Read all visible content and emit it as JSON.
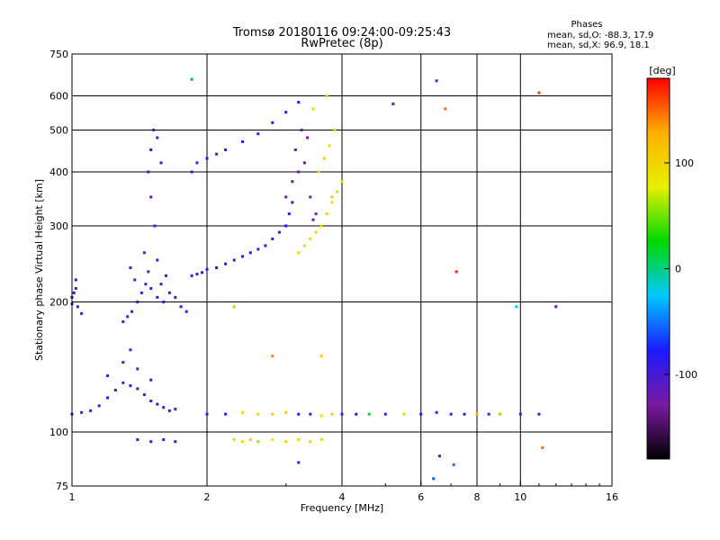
{
  "header": {
    "title_line1": "Tromsø 20180116 09:24:00-09:25:43",
    "title_line2": "RwPretec (8p)"
  },
  "phase_box": {
    "title": "Phases",
    "line_o": "mean, sd,O: -88.3, 17.9",
    "line_x": "mean, sd,X:  96.9, 18.1"
  },
  "colorbar": {
    "label": "[deg]",
    "ticks": [
      {
        "label": "100",
        "value": 100
      },
      {
        "label": "0",
        "value": 0
      },
      {
        "label": "-100",
        "value": -100
      }
    ],
    "range": [
      -180,
      180
    ],
    "colors": [
      "#000000",
      "#7a1aa0",
      "#1a1aff",
      "#00c8ff",
      "#00d900",
      "#e6f000",
      "#ffb000",
      "#ff0000"
    ]
  },
  "chart_data": {
    "type": "scatter",
    "title": "Tromsø 20180116 09:24:00-09:25:43",
    "subtitle": "RwPretec (8p)",
    "xlabel": "Frequency [MHz]",
    "ylabel": "Stationary phase Virtual Height [km]",
    "x_scale": "log",
    "y_scale": "log",
    "xlim": [
      1,
      16
    ],
    "ylim": [
      75,
      750
    ],
    "x_ticks": [
      {
        "label": "1",
        "value": 1
      },
      {
        "label": "2",
        "value": 2
      },
      {
        "label": "4",
        "value": 4
      },
      {
        "label": "6",
        "value": 6
      },
      {
        "label": "8",
        "value": 8
      },
      {
        "label": "10",
        "value": 10
      },
      {
        "label": "16",
        "value": 16
      }
    ],
    "y_ticks": [
      {
        "label": "75",
        "value": 75
      },
      {
        "label": "100",
        "value": 100
      },
      {
        "label": "200",
        "value": 200
      },
      {
        "label": "300",
        "value": 300
      },
      {
        "label": "400",
        "value": 400
      },
      {
        "label": "500",
        "value": 500
      },
      {
        "label": "600",
        "value": 600
      },
      {
        "label": "750",
        "value": 750
      }
    ],
    "grid_x": [
      2,
      4,
      6,
      8,
      10
    ],
    "grid_y": [
      100,
      200,
      300,
      400,
      500,
      600
    ],
    "color_by": "phase_deg",
    "series": [
      {
        "x": [
          1.0,
          1.01,
          1.02,
          1.03,
          1.05,
          1.02,
          1.0
        ],
        "y": [
          198,
          210,
          215,
          195,
          188,
          225,
          205
        ],
        "phase": [
          -95,
          -90,
          -100,
          -85,
          -92,
          -88,
          -96
        ]
      },
      {
        "x": [
          1.3,
          1.33,
          1.36,
          1.4,
          1.43,
          1.46,
          1.5,
          1.55,
          1.6,
          1.65,
          1.7,
          1.75,
          1.8,
          1.35,
          1.45,
          1.55,
          1.62,
          1.38,
          1.48,
          1.58
        ],
        "y": [
          180,
          185,
          190,
          200,
          210,
          220,
          215,
          205,
          200,
          210,
          205,
          195,
          190,
          240,
          260,
          250,
          230,
          225,
          235,
          220
        ],
        "phase": [
          -110,
          -105,
          -100,
          -95,
          -100,
          -105,
          -98,
          -92,
          -96,
          -102,
          -94,
          -90,
          -95,
          -100,
          -104,
          -97,
          -93,
          -108,
          -99,
          -101
        ]
      },
      {
        "x": [
          1.48,
          1.5,
          1.52,
          1.55,
          1.58,
          1.5,
          1.53
        ],
        "y": [
          400,
          450,
          500,
          480,
          420,
          350,
          300
        ],
        "phase": [
          -100,
          -95,
          -90,
          -98,
          -92,
          -105,
          -96
        ]
      },
      {
        "x": [
          1.85,
          1.9,
          1.95,
          2.0,
          2.1,
          2.2,
          2.3,
          2.4,
          2.5,
          2.6,
          2.7,
          2.8,
          2.9,
          3.0,
          3.05,
          3.1
        ],
        "y": [
          230,
          232,
          234,
          238,
          240,
          245,
          250,
          255,
          260,
          265,
          270,
          280,
          290,
          300,
          320,
          340
        ],
        "phase": [
          -85,
          -88,
          -82,
          -80,
          -84,
          -86,
          -80,
          -78,
          -82,
          -85,
          -80,
          -78,
          -82,
          -80,
          -84,
          -86
        ]
      },
      {
        "x": [
          3.0,
          3.1,
          3.2,
          3.3,
          3.4,
          3.5,
          3.15,
          3.25,
          3.35,
          3.45
        ],
        "y": [
          350,
          380,
          400,
          420,
          350,
          320,
          450,
          500,
          480,
          310
        ],
        "phase": [
          -125,
          -130,
          -120,
          -135,
          -118,
          -128,
          -122,
          -132,
          -126,
          -119
        ]
      },
      {
        "x": [
          1.85,
          1.9,
          2.0,
          2.1,
          2.2,
          2.4,
          2.6,
          2.8,
          3.0,
          3.2
        ],
        "y": [
          400,
          420,
          430,
          440,
          450,
          470,
          490,
          520,
          550,
          580
        ],
        "phase": [
          -80,
          -85,
          -78,
          -82,
          -84,
          -80,
          -76,
          -82,
          -78,
          -80
        ]
      },
      {
        "x": [
          3.2,
          3.3,
          3.4,
          3.5,
          3.6,
          3.7,
          3.8,
          3.9,
          4.0,
          3.55,
          3.65,
          3.75,
          3.85,
          3.45,
          3.7,
          3.8
        ],
        "y": [
          260,
          270,
          280,
          290,
          300,
          320,
          340,
          360,
          380,
          400,
          430,
          460,
          500,
          560,
          600,
          350
        ],
        "phase": [
          95,
          100,
          98,
          102,
          96,
          104,
          92,
          99,
          101,
          97,
          103,
          95,
          100,
          98,
          102,
          110
        ]
      },
      {
        "x": [
          1.0,
          1.05,
          1.1,
          1.15,
          1.2,
          1.25,
          1.3,
          1.35,
          1.4,
          1.45,
          1.5,
          1.55,
          1.6,
          1.65,
          1.7,
          1.2,
          1.3,
          1.4,
          1.5,
          1.35
        ],
        "y": [
          110,
          111,
          112,
          115,
          120,
          125,
          130,
          128,
          126,
          122,
          118,
          116,
          114,
          112,
          113,
          135,
          145,
          140,
          132,
          155
        ],
        "phase": [
          -95,
          -92,
          -98,
          -90,
          -94,
          -100,
          -96,
          -92,
          -97,
          -93,
          -99,
          -91,
          -95,
          -94,
          -98,
          -102,
          -105,
          -100,
          -96,
          -108
        ]
      },
      {
        "x": [
          2.0,
          2.2,
          2.4,
          2.6,
          2.8,
          3.0,
          3.2,
          3.4,
          3.6,
          3.8,
          4.0,
          4.3,
          4.6,
          5.0,
          5.5,
          6.0,
          6.5,
          7.0,
          7.5,
          8.0,
          8.5,
          9.0,
          10.0,
          11.0
        ],
        "y": [
          110,
          110,
          111,
          110,
          110,
          111,
          110,
          110,
          109,
          110,
          110,
          110,
          110,
          110,
          110,
          110,
          111,
          110,
          110,
          110,
          110,
          110,
          110,
          110
        ],
        "phase": [
          -90,
          -85,
          95,
          100,
          110,
          105,
          -88,
          -92,
          90,
          110,
          -95,
          -90,
          20,
          -88,
          100,
          -90,
          -95,
          -88,
          -92,
          120,
          -95,
          60,
          -90,
          -92
        ]
      },
      {
        "x": [
          1.4,
          1.5,
          1.6,
          1.7,
          2.3,
          2.4,
          2.5,
          2.6,
          2.8,
          3.0,
          3.2,
          3.4,
          3.6
        ],
        "y": [
          96,
          95,
          96,
          95,
          96,
          95,
          96,
          95,
          96,
          95,
          96,
          95,
          96
        ],
        "phase": [
          -90,
          -95,
          -88,
          -92,
          100,
          95,
          105,
          60,
          80,
          110,
          95,
          100,
          70
        ]
      },
      {
        "x": [
          1.85,
          2.3,
          2.8,
          3.2,
          5.2,
          6.5,
          6.8,
          7.2,
          9.8,
          11.0,
          12.0,
          6.4,
          7.1,
          11.2,
          6.6,
          3.6
        ],
        "y": [
          655,
          195,
          150,
          85,
          575,
          650,
          560,
          235,
          195,
          610,
          195,
          78,
          84,
          92,
          88,
          150
        ],
        "phase": [
          -40,
          60,
          140,
          -100,
          -110,
          -120,
          150,
          170,
          -20,
          165,
          -110,
          -60,
          -50,
          150,
          -90,
          100
        ]
      }
    ]
  }
}
